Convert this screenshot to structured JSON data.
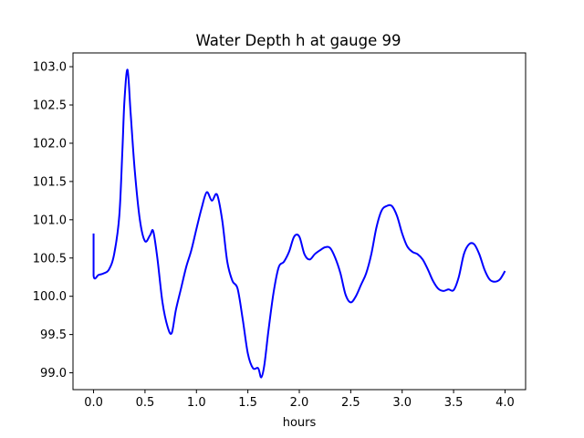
{
  "chart_data": {
    "type": "line",
    "title": "Water Depth h at gauge 99",
    "xlabel": "hours",
    "ylabel": "",
    "xlim": [
      -0.2,
      4.2
    ],
    "ylim": [
      98.78,
      103.18
    ],
    "xticks": [
      0.0,
      0.5,
      1.0,
      1.5,
      2.0,
      2.5,
      3.0,
      3.5,
      4.0
    ],
    "xtick_labels": [
      "0.0",
      "0.5",
      "1.0",
      "1.5",
      "2.0",
      "2.5",
      "3.0",
      "3.5",
      "4.0"
    ],
    "yticks": [
      99.0,
      99.5,
      100.0,
      100.5,
      101.0,
      101.5,
      102.0,
      102.5,
      103.0
    ],
    "ytick_labels": [
      "99.0",
      "99.5",
      "100.0",
      "100.5",
      "101.0",
      "101.5",
      "102.0",
      "102.5",
      "103.0"
    ],
    "grid": false,
    "series": [
      {
        "color": "#0000ff",
        "x": [
          0.0,
          0.0,
          0.05,
          0.1,
          0.15,
          0.2,
          0.25,
          0.28,
          0.3,
          0.33,
          0.36,
          0.4,
          0.45,
          0.5,
          0.55,
          0.58,
          0.62,
          0.67,
          0.72,
          0.76,
          0.8,
          0.85,
          0.9,
          0.95,
          1.0,
          1.05,
          1.1,
          1.15,
          1.2,
          1.25,
          1.3,
          1.35,
          1.4,
          1.45,
          1.5,
          1.55,
          1.6,
          1.63,
          1.66,
          1.7,
          1.75,
          1.8,
          1.85,
          1.9,
          1.95,
          2.0,
          2.05,
          2.1,
          2.15,
          2.2,
          2.25,
          2.3,
          2.35,
          2.4,
          2.45,
          2.5,
          2.55,
          2.6,
          2.65,
          2.7,
          2.75,
          2.8,
          2.85,
          2.9,
          2.95,
          3.0,
          3.05,
          3.1,
          3.15,
          3.2,
          3.25,
          3.3,
          3.35,
          3.4,
          3.45,
          3.5,
          3.55,
          3.6,
          3.65,
          3.7,
          3.75,
          3.8,
          3.85,
          3.9,
          3.95,
          4.0
        ],
        "y": [
          100.82,
          100.27,
          100.28,
          100.3,
          100.35,
          100.55,
          101.05,
          101.9,
          102.55,
          102.96,
          102.4,
          101.65,
          101.0,
          100.72,
          100.8,
          100.85,
          100.5,
          99.92,
          99.6,
          99.52,
          99.82,
          100.1,
          100.38,
          100.6,
          100.88,
          101.15,
          101.36,
          101.25,
          101.33,
          101.0,
          100.45,
          100.2,
          100.1,
          99.7,
          99.25,
          99.06,
          99.06,
          98.94,
          99.1,
          99.55,
          100.05,
          100.38,
          100.45,
          100.58,
          100.78,
          100.78,
          100.55,
          100.48,
          100.55,
          100.6,
          100.64,
          100.63,
          100.5,
          100.3,
          100.02,
          99.92,
          100.0,
          100.15,
          100.3,
          100.55,
          100.9,
          101.12,
          101.18,
          101.18,
          101.05,
          100.82,
          100.65,
          100.58,
          100.55,
          100.48,
          100.35,
          100.2,
          100.1,
          100.07,
          100.09,
          100.08,
          100.25,
          100.55,
          100.68,
          100.68,
          100.55,
          100.35,
          100.22,
          100.19,
          100.22,
          100.33
        ]
      }
    ]
  }
}
